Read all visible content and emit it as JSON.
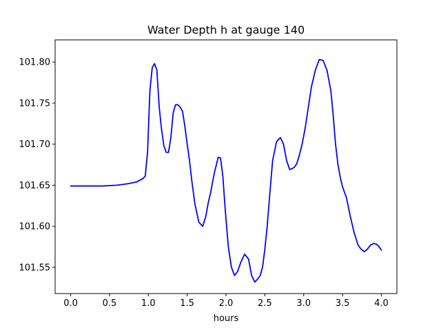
{
  "chart_data": {
    "type": "line",
    "title": "Water Depth h at gauge 140",
    "xlabel": "hours",
    "ylabel": "",
    "xlim": [
      -0.2,
      4.2
    ],
    "ylim": [
      101.518,
      101.827
    ],
    "xticks": [
      0.0,
      0.5,
      1.0,
      1.5,
      2.0,
      2.5,
      3.0,
      3.5,
      4.0
    ],
    "xtick_labels": [
      "0.0",
      "0.5",
      "1.0",
      "1.5",
      "2.0",
      "2.5",
      "3.0",
      "3.5",
      "4.0"
    ],
    "yticks": [
      101.55,
      101.6,
      101.65,
      101.7,
      101.75,
      101.8
    ],
    "ytick_labels": [
      "101.55",
      "101.60",
      "101.65",
      "101.70",
      "101.75",
      "101.80"
    ],
    "grid": false,
    "line_color": "#0000ff",
    "series": [
      {
        "x": [
          0.0,
          0.2,
          0.4,
          0.6,
          0.75,
          0.85,
          0.93,
          0.96,
          0.99,
          1.02,
          1.05,
          1.08,
          1.11,
          1.14,
          1.17,
          1.2,
          1.23,
          1.26,
          1.29,
          1.32,
          1.35,
          1.38,
          1.41,
          1.44,
          1.47,
          1.5,
          1.53,
          1.56,
          1.6,
          1.65,
          1.7,
          1.74,
          1.77,
          1.8,
          1.85,
          1.9,
          1.93,
          1.96,
          1.99,
          2.03,
          2.07,
          2.11,
          2.15,
          2.19,
          2.24,
          2.29,
          2.33,
          2.37,
          2.41,
          2.44,
          2.47,
          2.5,
          2.53,
          2.56,
          2.6,
          2.65,
          2.7,
          2.74,
          2.78,
          2.82,
          2.85,
          2.88,
          2.91,
          2.94,
          2.98,
          3.02,
          3.06,
          3.1,
          3.15,
          3.2,
          3.25,
          3.3,
          3.35,
          3.38,
          3.41,
          3.44,
          3.47,
          3.5,
          3.55,
          3.6,
          3.65,
          3.7,
          3.74,
          3.78,
          3.82,
          3.86,
          3.9,
          3.94,
          3.97,
          4.0
        ],
        "y": [
          101.649,
          101.649,
          101.649,
          101.65,
          101.652,
          101.654,
          101.658,
          101.661,
          101.69,
          101.765,
          101.793,
          101.798,
          101.79,
          101.745,
          101.718,
          101.698,
          101.69,
          101.69,
          101.708,
          101.738,
          101.748,
          101.748,
          101.745,
          101.74,
          101.722,
          101.7,
          101.68,
          101.655,
          101.627,
          101.605,
          101.6,
          101.612,
          101.628,
          101.64,
          101.665,
          101.684,
          101.683,
          101.66,
          101.62,
          101.575,
          101.55,
          101.54,
          101.545,
          101.556,
          101.566,
          101.56,
          101.54,
          101.532,
          101.536,
          101.54,
          101.55,
          101.572,
          101.6,
          101.635,
          101.68,
          101.703,
          101.708,
          101.7,
          101.68,
          101.669,
          101.67,
          101.672,
          101.676,
          101.685,
          101.7,
          101.72,
          101.745,
          101.77,
          101.79,
          101.803,
          101.802,
          101.79,
          101.765,
          101.735,
          101.7,
          101.676,
          101.66,
          101.648,
          101.635,
          101.612,
          101.592,
          101.577,
          101.572,
          101.569,
          101.572,
          101.577,
          101.579,
          101.578,
          101.575,
          101.571
        ]
      }
    ]
  }
}
